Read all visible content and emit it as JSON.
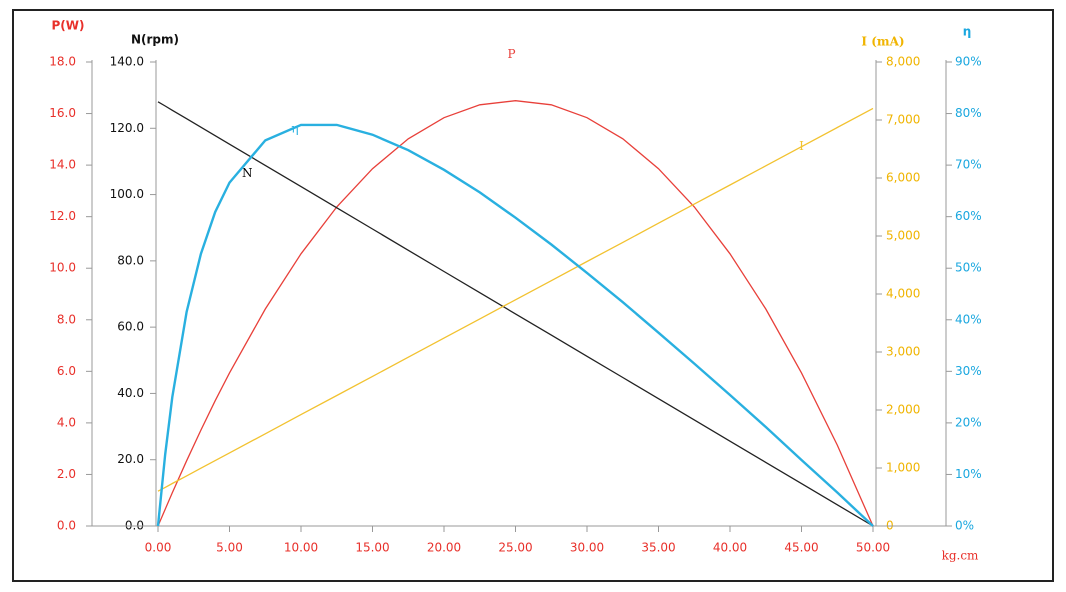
{
  "chart_data": {
    "type": "line",
    "x_label": "kg.cm",
    "x": [
      0,
      0.5,
      1,
      2,
      3,
      4,
      5,
      7.5,
      10,
      12.5,
      15,
      17.5,
      20,
      22.5,
      25,
      27.5,
      30,
      32.5,
      35,
      37.5,
      40,
      42.5,
      45,
      47.5,
      50
    ],
    "xlim": [
      0,
      50
    ],
    "xticks": [
      {
        "value": 0,
        "label": "0.00"
      },
      {
        "value": 5,
        "label": "5.00"
      },
      {
        "value": 10,
        "label": "10.00"
      },
      {
        "value": 15,
        "label": "15.00"
      },
      {
        "value": 20,
        "label": "20.00"
      },
      {
        "value": 25,
        "label": "25.00"
      },
      {
        "value": 30,
        "label": "30.00"
      },
      {
        "value": 35,
        "label": "35.00"
      },
      {
        "value": 40,
        "label": "40.00"
      },
      {
        "value": 45,
        "label": "45.00"
      },
      {
        "value": 50,
        "label": "50.00"
      }
    ],
    "y_axes": [
      {
        "label": "P(W)",
        "color": "#e8302a",
        "lim": [
          0,
          18
        ],
        "ticks": [
          {
            "value": 0,
            "label": "0.0"
          },
          {
            "value": 2,
            "label": "2.0"
          },
          {
            "value": 4,
            "label": "4.0"
          },
          {
            "value": 6,
            "label": "6.0"
          },
          {
            "value": 8,
            "label": "8.0"
          },
          {
            "value": 10,
            "label": "10.0"
          },
          {
            "value": 12,
            "label": "12.0"
          },
          {
            "value": 14,
            "label": "14.0"
          },
          {
            "value": 16,
            "label": "16.0"
          },
          {
            "value": 18,
            "label": "18.0"
          }
        ]
      },
      {
        "label": "N(rpm)",
        "color": "#111111",
        "lim": [
          0,
          140
        ],
        "ticks": [
          {
            "value": 0,
            "label": "0.0"
          },
          {
            "value": 20,
            "label": "20.0"
          },
          {
            "value": 40,
            "label": "40.0"
          },
          {
            "value": 60,
            "label": "60.0"
          },
          {
            "value": 80,
            "label": "80.0"
          },
          {
            "value": 100,
            "label": "100.0"
          },
          {
            "value": 120,
            "label": "120.0"
          },
          {
            "value": 140,
            "label": "140.0"
          }
        ]
      },
      {
        "label": "I (mA)",
        "color": "#f0b400",
        "lim": [
          0,
          8000
        ],
        "ticks": [
          0,
          {
            "value": 1000,
            "label": "1,000"
          },
          {
            "value": 2000,
            "label": "2,000"
          },
          {
            "value": 3000,
            "label": "3,000"
          },
          {
            "value": 4000,
            "label": "4,000"
          },
          {
            "value": 5000,
            "label": "5,000"
          },
          {
            "value": 6000,
            "label": "6,000"
          },
          {
            "value": 7000,
            "label": "7,000"
          },
          {
            "value": 8000,
            "label": "8,000"
          }
        ]
      },
      {
        "label": "η",
        "color": "#1aa7df",
        "lim": [
          0,
          90
        ],
        "ticks": [
          {
            "value": 0,
            "label": "0%"
          },
          {
            "value": 10,
            "label": "10%"
          },
          {
            "value": 20,
            "label": "20%"
          },
          {
            "value": 30,
            "label": "30%"
          },
          {
            "value": 40,
            "label": "40%"
          },
          {
            "value": 50,
            "label": "50%"
          },
          {
            "value": 60,
            "label": "60%"
          },
          {
            "value": 70,
            "label": "70%"
          },
          {
            "value": 80,
            "label": "80%"
          },
          {
            "value": 90,
            "label": "90%"
          }
        ]
      }
    ],
    "series": [
      {
        "name": "P",
        "color": "#e8403a",
        "axis": 0,
        "values": [
          0,
          0.65,
          1.29,
          2.53,
          3.72,
          4.86,
          5.94,
          8.42,
          10.56,
          12.38,
          13.86,
          15.02,
          15.84,
          16.34,
          16.5,
          16.34,
          15.84,
          15.02,
          13.86,
          12.38,
          10.56,
          8.42,
          5.94,
          3.14,
          0
        ]
      },
      {
        "name": "N",
        "color": "#222222",
        "axis": 1,
        "values": [
          128,
          126.72,
          125.44,
          122.88,
          120.32,
          117.76,
          115.2,
          108.8,
          102.4,
          96,
          89.6,
          83.2,
          76.8,
          70.4,
          64,
          57.6,
          51.2,
          44.8,
          38.4,
          32,
          25.6,
          19.2,
          12.8,
          6.4,
          0
        ]
      },
      {
        "name": "I",
        "color": "#f2c230",
        "axis": 2,
        "values": [
          600,
          666,
          732,
          864,
          996,
          1128,
          1260,
          1590,
          1920,
          2250,
          2580,
          2910,
          3240,
          3570,
          3900,
          4230,
          4560,
          4890,
          5220,
          5550,
          5880,
          6210,
          6540,
          6870,
          7200
        ]
      },
      {
        "name": "η",
        "color": "#29b0e0",
        "axis": 3,
        "values": [
          0,
          13.9,
          25,
          41.5,
          52.8,
          60.9,
          66.6,
          74.8,
          77.8,
          77.8,
          75.9,
          72.9,
          69.1,
          64.7,
          59.8,
          54.6,
          49.1,
          43.4,
          37.5,
          31.5,
          25.4,
          19.2,
          12.8,
          6.5,
          0
        ]
      }
    ]
  }
}
